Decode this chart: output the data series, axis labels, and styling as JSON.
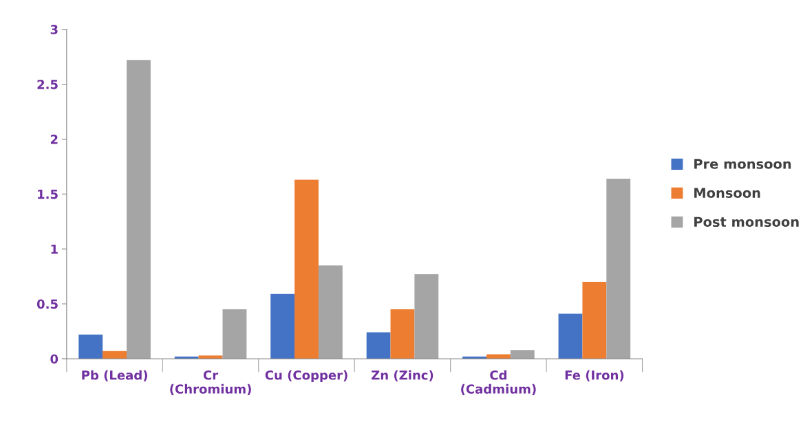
{
  "chart_data": {
    "type": "bar",
    "categories": [
      "Pb (Lead)",
      "Cr\n(Chromium)",
      "Cu (Copper)",
      "Zn (Zinc)",
      "Cd\n(Cadmium)",
      "Fe (Iron)"
    ],
    "series": [
      {
        "name": "Pre monsoon",
        "color": "#4472c4",
        "values": [
          0.22,
          0.02,
          0.59,
          0.24,
          0.02,
          0.41
        ]
      },
      {
        "name": "Monsoon",
        "color": "#ed7d31",
        "values": [
          0.07,
          0.03,
          1.63,
          0.45,
          0.04,
          0.7
        ]
      },
      {
        "name": "Post monsoon",
        "color": "#a5a5a5",
        "values": [
          2.72,
          0.45,
          0.85,
          0.77,
          0.08,
          1.64
        ]
      }
    ],
    "ylim": [
      0,
      3
    ],
    "yticks": [
      0,
      0.5,
      1,
      1.5,
      2,
      2.5,
      3
    ],
    "grid": false,
    "legend": "right"
  }
}
